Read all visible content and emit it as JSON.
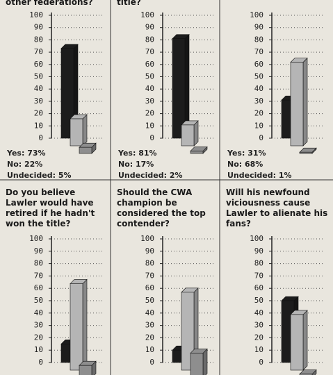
{
  "chart_data": [
    {
      "type": "bar",
      "title": "other federations?",
      "values": [
        73,
        22,
        5
      ],
      "value_labels": [
        "Yes: 73%",
        "No: 22%",
        "Undecided: 5%"
      ],
      "colors": [
        "#1c1c1c",
        "#b5b5b5",
        "#8e8e8e"
      ],
      "ylim": [
        0,
        100
      ],
      "yticks": [
        0,
        10,
        20,
        30,
        40,
        50,
        60,
        70,
        80,
        90,
        100
      ],
      "grid": true
    },
    {
      "type": "bar",
      "title": "title?",
      "values": [
        81,
        17,
        2
      ],
      "value_labels": [
        "Yes: 81%",
        "No: 17%",
        "Undecided: 2%"
      ],
      "colors": [
        "#1c1c1c",
        "#b5b5b5",
        "#8e8e8e"
      ],
      "ylim": [
        0,
        100
      ],
      "yticks": [
        0,
        10,
        20,
        30,
        40,
        50,
        60,
        70,
        80,
        90,
        100
      ],
      "grid": true
    },
    {
      "type": "bar",
      "values": [
        31,
        68,
        1
      ],
      "value_labels": [
        "Yes: 31%",
        "No: 68%",
        "Undecided: 1%"
      ],
      "colors": [
        "#1c1c1c",
        "#b5b5b5",
        "#8e8e8e"
      ],
      "ylim": [
        0,
        100
      ],
      "yticks": [
        0,
        10,
        20,
        30,
        40,
        50,
        60,
        70,
        80,
        90,
        100
      ],
      "grid": true
    },
    {
      "type": "bar",
      "title": "Do you believe Lawler would have retired if he hadn't won the title?",
      "values": [
        15,
        70,
        10
      ],
      "colors": [
        "#1c1c1c",
        "#b5b5b5",
        "#8e8e8e"
      ],
      "ylim": [
        0,
        100
      ],
      "yticks": [
        0,
        10,
        20,
        30,
        40,
        50,
        60,
        70,
        80,
        90,
        100
      ],
      "grid": true
    },
    {
      "type": "bar",
      "title": "Should the CWA champion be considered the top contender?",
      "values": [
        10,
        63,
        20
      ],
      "colors": [
        "#1c1c1c",
        "#b5b5b5",
        "#8e8e8e"
      ],
      "ylim": [
        0,
        100
      ],
      "yticks": [
        0,
        10,
        20,
        30,
        40,
        50,
        60,
        70,
        80,
        90,
        100
      ],
      "grid": true
    },
    {
      "type": "bar",
      "title": "Will his newfound viciousness cause Lawler to alienate his fans?",
      "values": [
        50,
        45,
        3
      ],
      "colors": [
        "#1c1c1c",
        "#b5b5b5",
        "#8e8e8e"
      ],
      "ylim": [
        0,
        100
      ],
      "yticks": [
        0,
        10,
        20,
        30,
        40,
        50,
        60,
        70,
        80,
        90,
        100
      ],
      "grid": true
    }
  ]
}
